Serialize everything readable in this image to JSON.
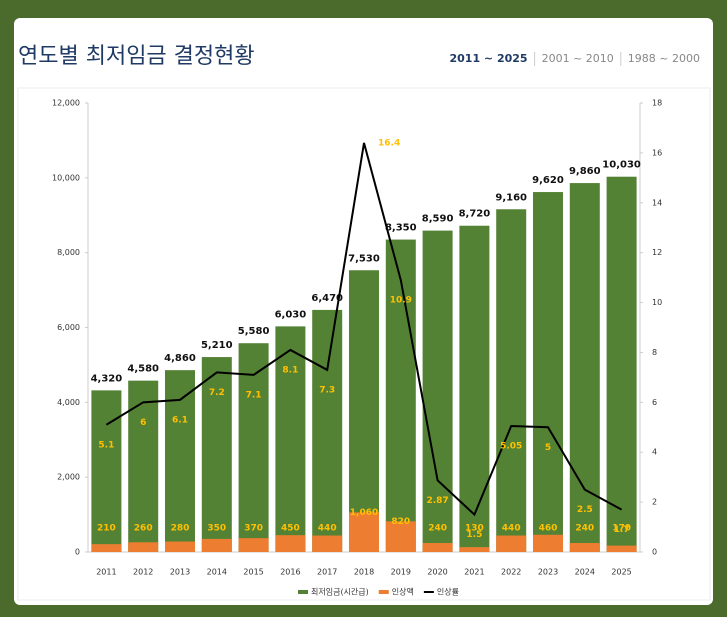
{
  "header": {
    "title": "연도별 최저임금 결정현황",
    "tabs": [
      "2011 ~ 2025",
      "2001 ~ 2010",
      "1988 ~ 2000"
    ]
  },
  "chart_data": {
    "type": "combo",
    "categories": [
      "2011",
      "2012",
      "2013",
      "2014",
      "2015",
      "2016",
      "2017",
      "2018",
      "2019",
      "2020",
      "2021",
      "2022",
      "2023",
      "2024",
      "2025"
    ],
    "series": [
      {
        "name": "최저임금(시간급)",
        "type": "bar",
        "color": "#548235",
        "values": [
          4320,
          4580,
          4860,
          5210,
          5580,
          6030,
          6470,
          7530,
          8350,
          8590,
          8720,
          9160,
          9620,
          9860,
          10030
        ],
        "value_labels": [
          "4,320",
          "4,580",
          "4,860",
          "5,210",
          "5,580",
          "6,030",
          "6,470",
          "7,530",
          "8,350",
          "8,590",
          "8,720",
          "9,160",
          "9,620",
          "9,860",
          "10,030"
        ]
      },
      {
        "name": "인상액",
        "type": "bar",
        "color": "#ed7d31",
        "values": [
          210,
          260,
          280,
          350,
          370,
          450,
          440,
          1060,
          820,
          240,
          130,
          440,
          460,
          240,
          170
        ],
        "value_labels": [
          "210",
          "260",
          "280",
          "350",
          "370",
          "450",
          "440",
          "1,060",
          "820",
          "240",
          "130",
          "440",
          "460",
          "240",
          "170"
        ]
      },
      {
        "name": "인상률",
        "type": "line",
        "axis": "y2",
        "color": "#000000",
        "values": [
          5.1,
          6,
          6.1,
          7.2,
          7.1,
          8.1,
          7.3,
          16.4,
          10.9,
          2.87,
          1.5,
          5.05,
          5,
          2.5,
          1.7
        ]
      }
    ],
    "ylim": [
      0,
      12000
    ],
    "yticks": [
      0,
      {
        "value": 2000,
        "label": "2,000"
      },
      {
        "value": 4000,
        "label": "4,000"
      },
      {
        "value": 6000,
        "label": "6,000"
      },
      {
        "value": 8000,
        "label": "8,000"
      },
      {
        "value": 10000,
        "label": "10,000"
      },
      {
        "value": 12000,
        "label": "12,000"
      }
    ],
    "y2lim": [
      0,
      18
    ],
    "y2ticks": [
      0,
      2,
      4,
      6,
      8,
      10,
      12,
      14,
      16,
      18
    ],
    "grid": false,
    "legend": "bottom"
  }
}
